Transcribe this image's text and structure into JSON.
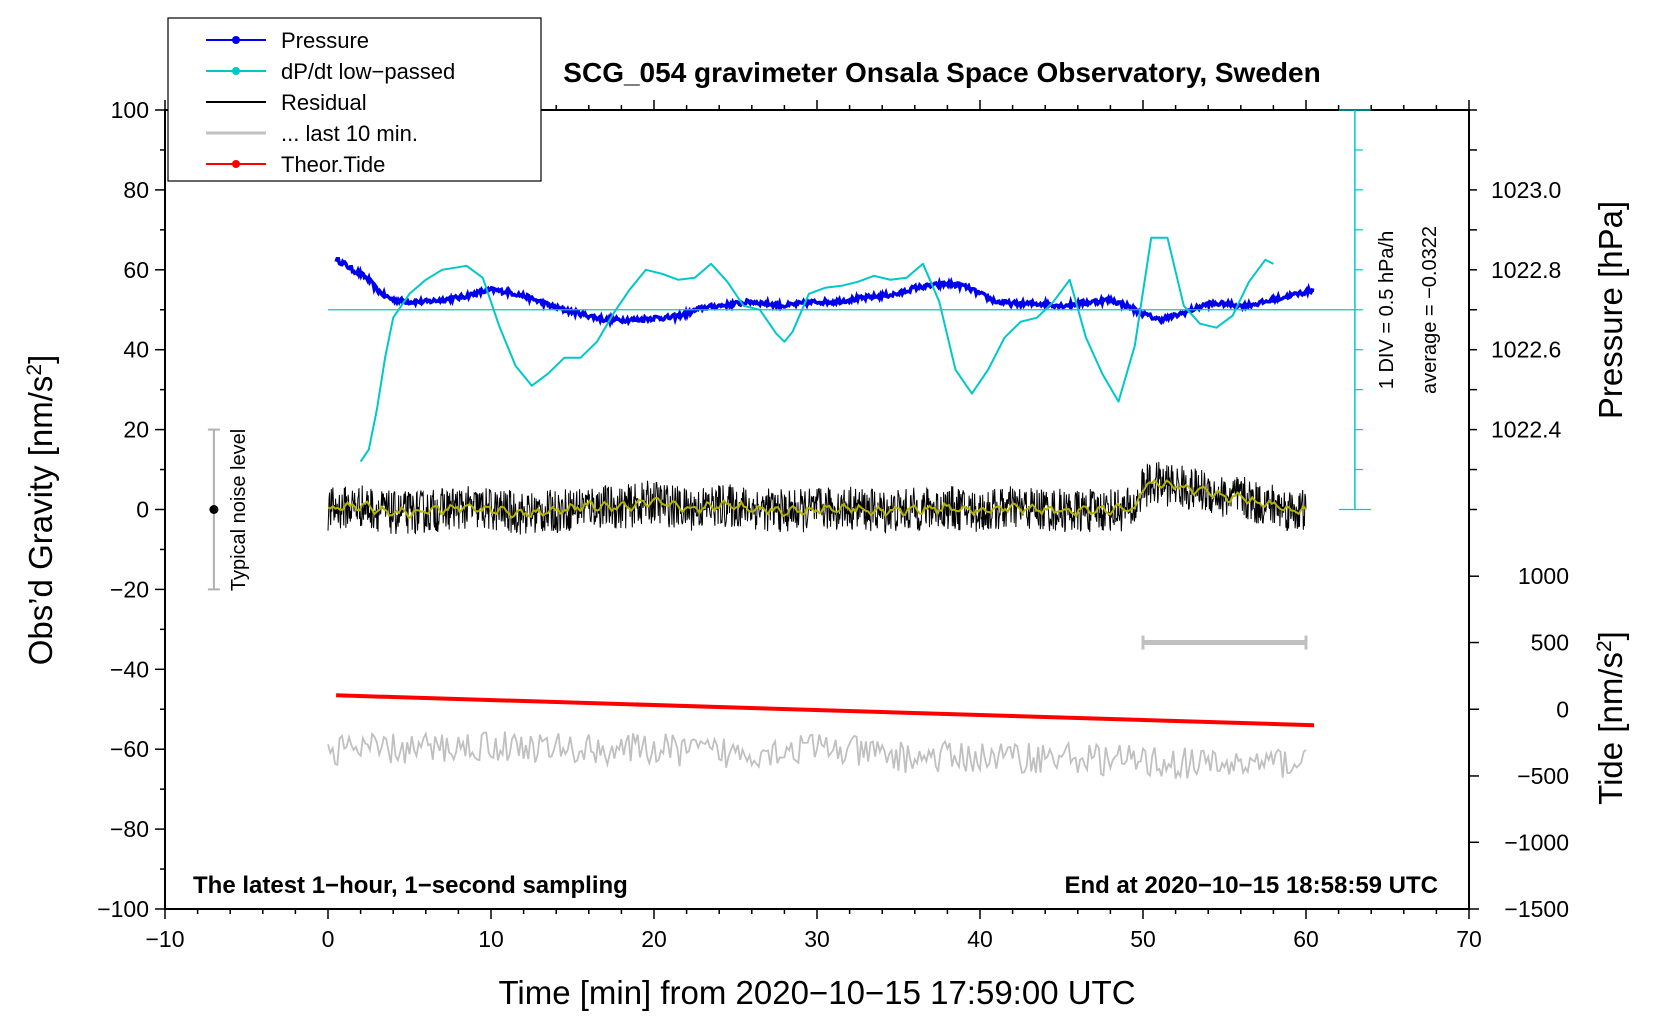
{
  "chart_data": {
    "type": "line",
    "title": "SCG_054 gravimeter Onsala Space Observatory, Sweden",
    "xlabel": "Time [min] from 2020−10−15 17:59:00 UTC",
    "ylabel_left_main": "Obs’d Gravity [nm/s",
    "ylabel_left_sup": "2",
    "ylabel_left_end": "]",
    "ylabel_right_pressure": "Pressure [hPa]",
    "ylabel_right_tide_main": "Tide [nm/s",
    "ylabel_right_tide_sup": "2",
    "ylabel_right_tide_end": "]",
    "xlim": [
      -10,
      70
    ],
    "ylim": [
      -100,
      100
    ],
    "x_ticks": [
      "−10",
      "0",
      "10",
      "20",
      "30",
      "40",
      "50",
      "60",
      "70"
    ],
    "y_ticks": [
      "100",
      "80",
      "60",
      "40",
      "20",
      "0",
      "−20",
      "−40",
      "−60",
      "−80",
      "−100"
    ],
    "pressure_axis": {
      "ticks": [
        "1023.0",
        "1022.8",
        "1022.6",
        "1022.4"
      ],
      "values": [
        1023.0,
        1022.8,
        1022.6,
        1022.4
      ],
      "gravity_equiv": [
        80,
        60,
        40,
        20
      ]
    },
    "tide_axis": {
      "ticks": [
        "1000",
        "500",
        "0",
        "−500",
        "−1000",
        "−1500"
      ],
      "values": [
        1000,
        500,
        0,
        -500,
        -1000,
        -1500
      ],
      "gravity_equiv": [
        -16.7,
        -33.3,
        -50,
        -66.7,
        -83.3,
        -100
      ]
    },
    "legend": [
      {
        "label": "Pressure",
        "color": "#0000ee",
        "marker": true
      },
      {
        "label": "dP/dt low−passed",
        "color": "#00c8c8",
        "marker": true
      },
      {
        "label": "Residual",
        "color": "#000000",
        "marker": false
      },
      {
        "label": "... last 10 min.",
        "color": "#c0c0c0",
        "marker": false
      },
      {
        "label": "Theor.Tide",
        "color": "#ff0000",
        "marker": true
      }
    ],
    "series": [
      {
        "name": "Pressure",
        "color": "#0000ee",
        "x": [
          0.5,
          1,
          1.5,
          2,
          2.5,
          3,
          3.5,
          4,
          5,
          6,
          7,
          8,
          9,
          10,
          11,
          12,
          13,
          14,
          15,
          16,
          17,
          18,
          19,
          20,
          21,
          22,
          23,
          24,
          25,
          26,
          27,
          28,
          29,
          30,
          31,
          32,
          33,
          34,
          35,
          36,
          37,
          38,
          39,
          40,
          41,
          42,
          43,
          44,
          45,
          46,
          47,
          48,
          49,
          50,
          51,
          52,
          53,
          54,
          55,
          56,
          57,
          58,
          59,
          60.5
        ],
        "values": [
          62.5,
          61.5,
          60,
          59,
          57.5,
          55,
          53.5,
          52.5,
          52,
          52,
          52.5,
          53,
          54,
          55,
          54.5,
          53.5,
          52,
          50.5,
          49.5,
          48.5,
          47.5,
          47.5,
          47.5,
          48,
          48,
          49,
          50.5,
          51,
          51.5,
          52,
          51.5,
          51,
          51.5,
          52,
          52,
          52.5,
          53,
          53.5,
          54,
          55.5,
          56,
          56.5,
          56,
          54,
          52,
          51.5,
          51.5,
          51.5,
          51,
          51.5,
          52,
          52.5,
          51,
          49,
          47.5,
          48.5,
          50,
          51.5,
          51.5,
          51,
          51.5,
          52.5,
          53.5,
          55
        ]
      },
      {
        "name": "dP/dt low−passed",
        "color": "#00c8c8",
        "x": [
          2,
          2.5,
          3,
          3.5,
          4,
          5,
          6,
          7,
          8.5,
          9.5,
          10.5,
          11.5,
          12.5,
          13.5,
          14.5,
          15.5,
          16.5,
          17.5,
          18.5,
          19.5,
          20.5,
          21.5,
          22.5,
          23.5,
          24.5,
          25.5,
          26.5,
          27.5,
          28,
          28.5,
          29.5,
          30.5,
          31.5,
          32.5,
          33.5,
          34.5,
          35.5,
          36.5,
          37.5,
          38.5,
          39.5,
          40.5,
          41.5,
          42.5,
          43.5,
          44.5,
          45.5,
          46.5,
          47.5,
          48.5,
          49.5,
          50.5,
          51.5,
          52.5,
          53.5,
          54.5,
          55.5,
          56.5,
          57.5,
          58
        ],
        "values": [
          12,
          15,
          25,
          38,
          48,
          54,
          57.5,
          60,
          61,
          58,
          46,
          36,
          31,
          34,
          38,
          38,
          42,
          49,
          55,
          60,
          59,
          57.5,
          58,
          61.5,
          57,
          51,
          50,
          44,
          42,
          44.5,
          54,
          55.5,
          56,
          57,
          58.5,
          57.5,
          58,
          61.5,
          52,
          35,
          29,
          35,
          43,
          47,
          48,
          52,
          57.5,
          43,
          34,
          27,
          41,
          68,
          68,
          51,
          46.5,
          45.5,
          48.5,
          57,
          62.5,
          61.5
        ]
      },
      {
        "name": "Residual",
        "color": "#000000",
        "x": [
          0,
          2,
          4,
          6,
          8,
          10,
          12,
          14,
          16,
          18,
          20,
          22,
          24,
          26,
          28,
          30,
          32,
          34,
          36,
          38,
          40,
          42,
          44,
          46,
          48,
          49.5,
          50,
          51,
          52,
          53,
          54,
          55,
          56,
          57,
          58,
          59,
          60
        ],
        "values": [
          0,
          1,
          -1,
          -0.5,
          0.5,
          0,
          -1,
          -0.5,
          1,
          0.5,
          2,
          0,
          1,
          0.5,
          -0.5,
          0,
          0.5,
          -0.5,
          0,
          0.5,
          -0.5,
          0.5,
          0,
          -0.5,
          0,
          0,
          6,
          6.5,
          6,
          5,
          4.5,
          3,
          3,
          1.5,
          1,
          0,
          -0.5
        ]
      },
      {
        "name": "... last 10 min.",
        "color": "#c0c0c0",
        "x": [
          0,
          5,
          10,
          15,
          20,
          25,
          30,
          35,
          40,
          45,
          50,
          55,
          60
        ],
        "values": [
          -60,
          -60,
          -59,
          -60,
          -60,
          -61,
          -59.5,
          -62,
          -62,
          -62,
          -63,
          -64,
          -63
        ]
      },
      {
        "name": "Theor.Tide",
        "color": "#ff0000",
        "x": [
          0.5,
          60.5
        ],
        "values": [
          -46.5,
          -54
        ]
      }
    ],
    "pressure_reference_line": 50,
    "dpdt_scale_label": "1 DIV = 0.5 hPa/h",
    "average_label": "average = −0.0322",
    "noise_bar": {
      "label": "Typical noise level",
      "x": -7,
      "center": 0,
      "low": -20,
      "high": 20
    },
    "last10_bar": {
      "x_start": 50,
      "x_end": 60,
      "y": -33.3
    },
    "note_left": "The latest 1−hour, 1−second sampling",
    "note_right": "End at 2020−10−15 18:58:59 UTC"
  }
}
